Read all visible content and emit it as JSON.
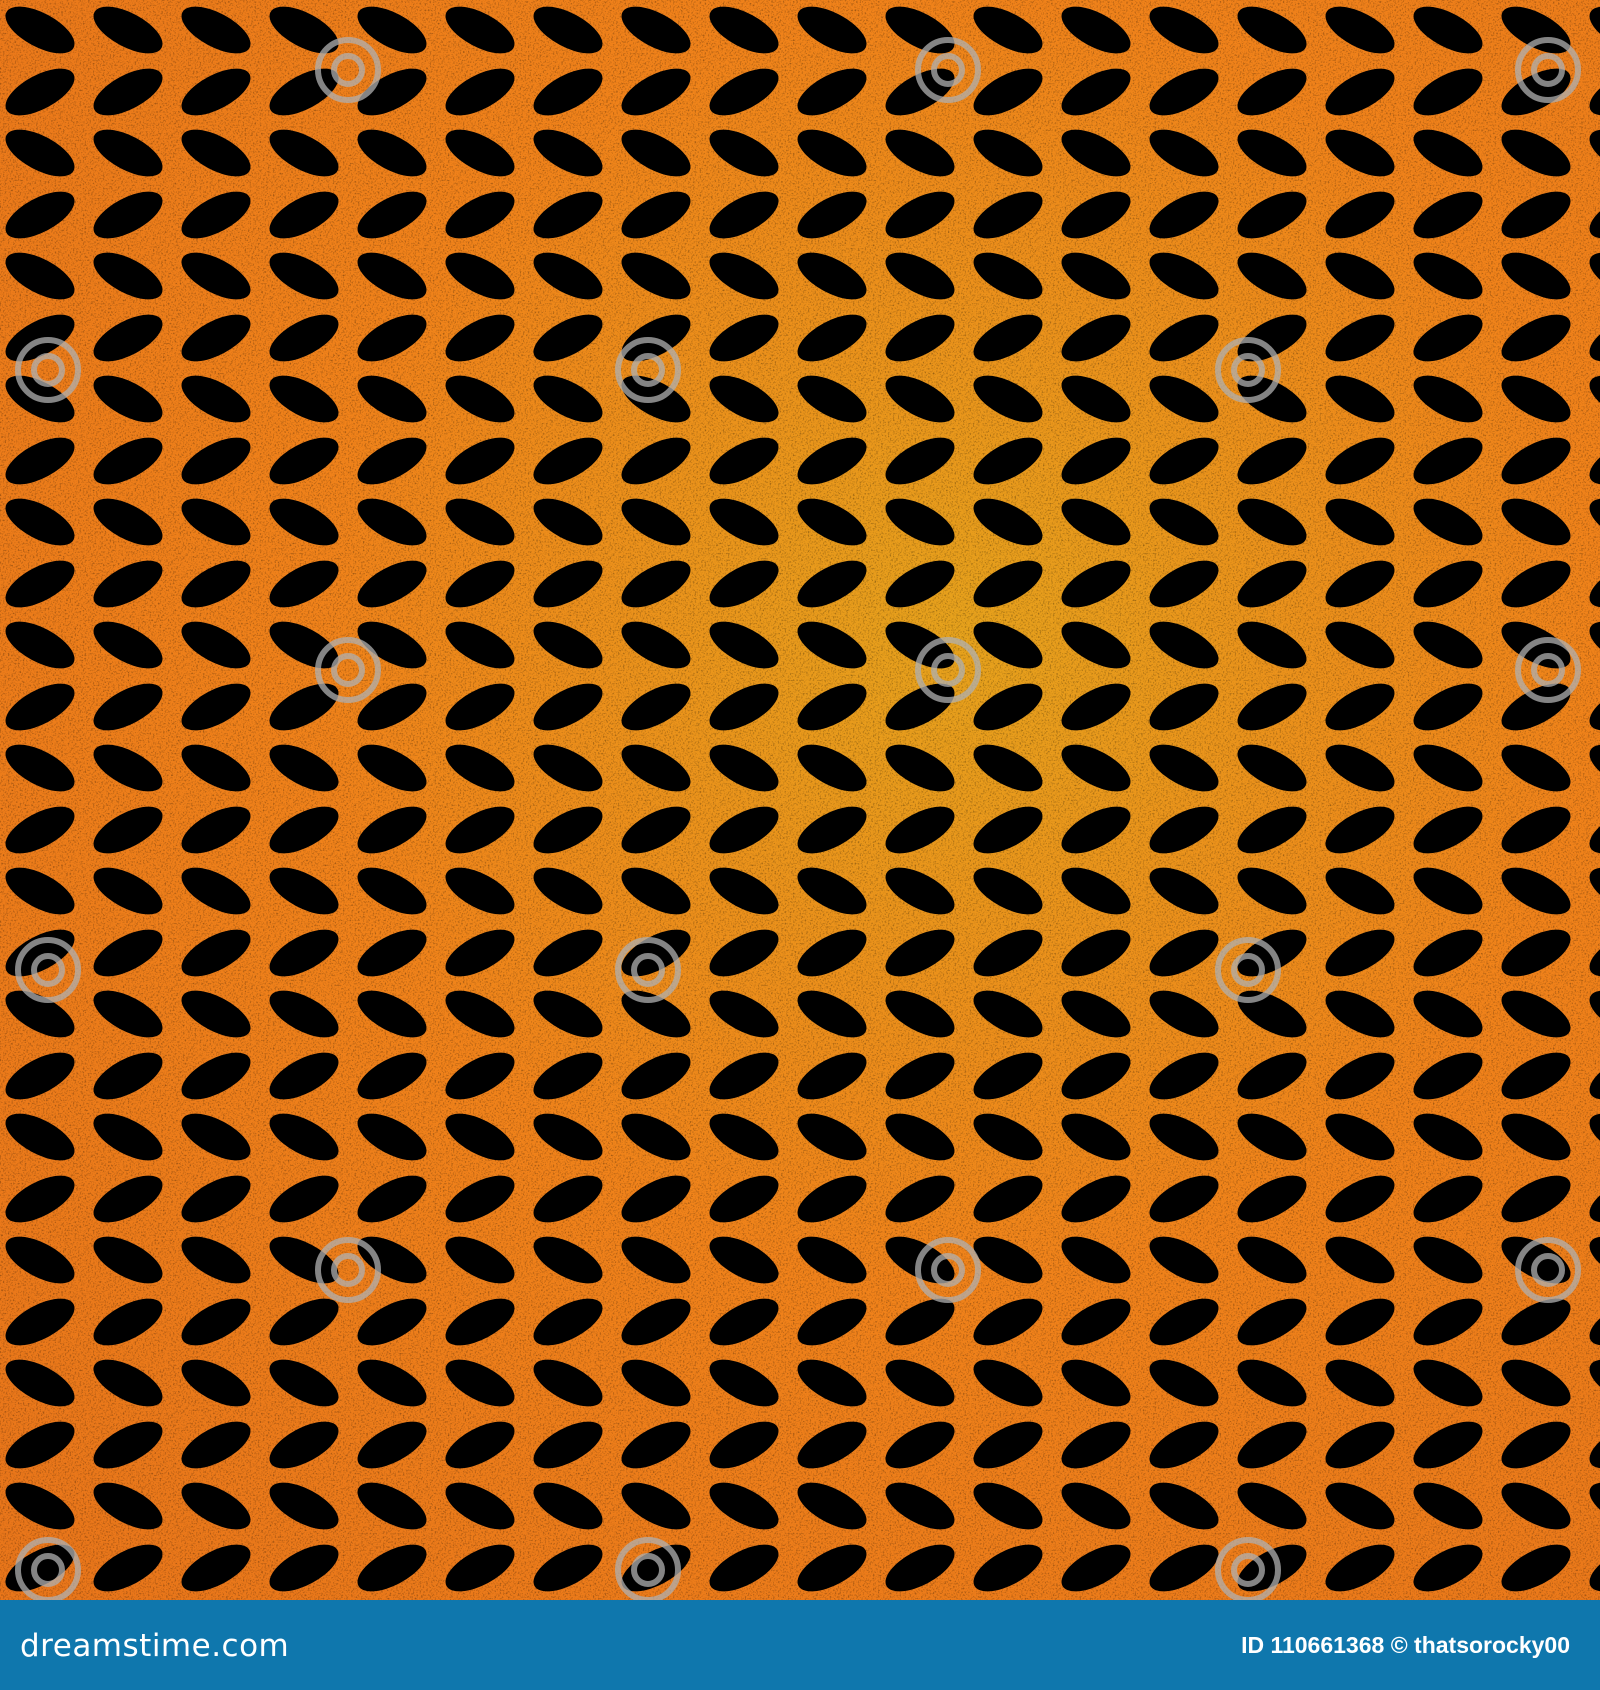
{
  "image": {
    "description_colors": {
      "background": "#f07e1a",
      "highlight": "#e0a020",
      "motif": "#000000"
    },
    "watermark_icon": "dreamstime-spiral-icon"
  },
  "footer": {
    "logo_text": "dreamstime.com",
    "credit": "ID 110661368 © thatsorocky00",
    "background_color": "#0f77ad"
  }
}
